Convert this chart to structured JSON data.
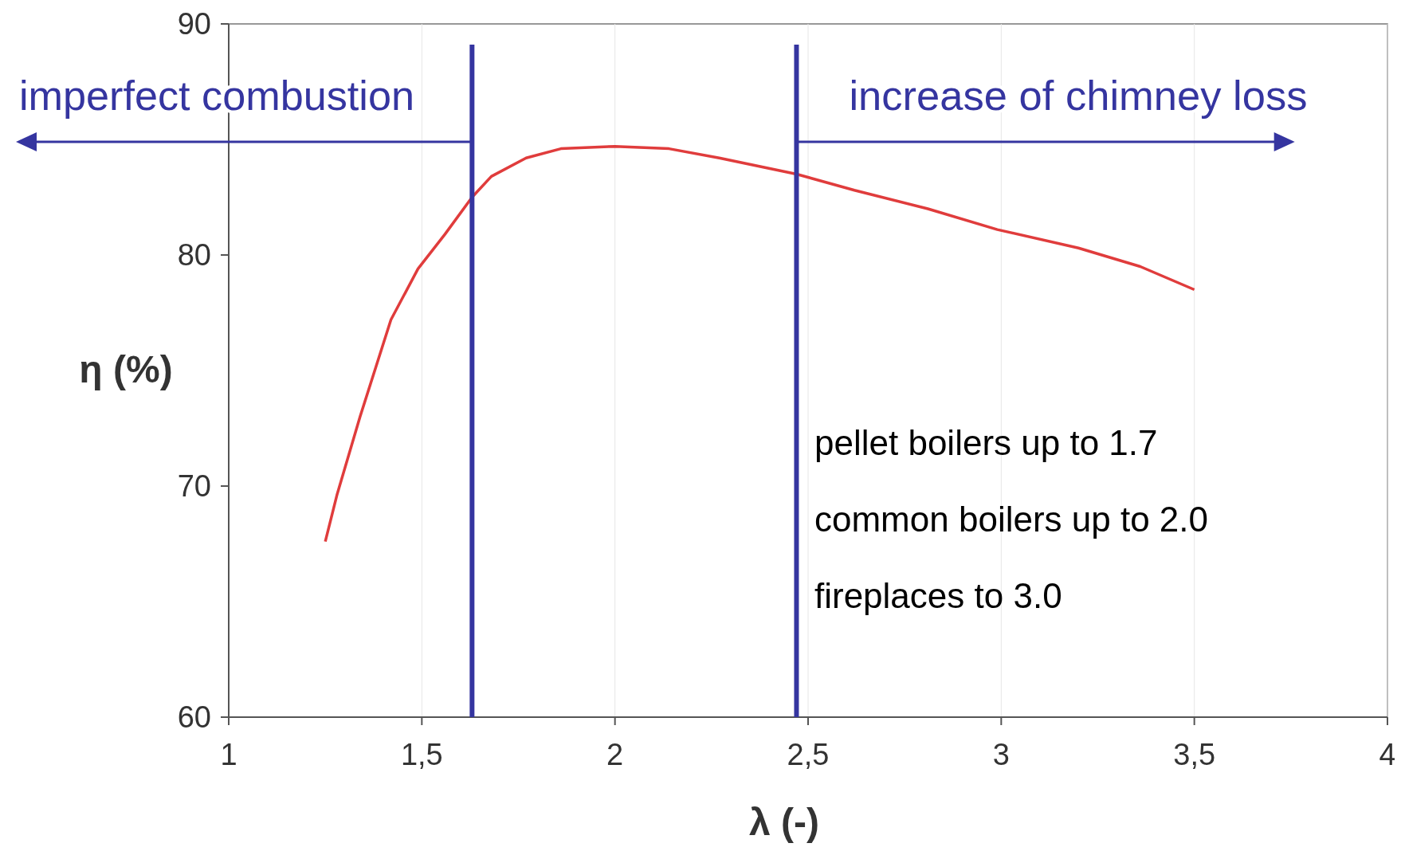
{
  "chart_data": {
    "type": "line",
    "xlabel": "λ (-)",
    "ylabel": "η (%)",
    "x": [
      1.25,
      1.28,
      1.34,
      1.42,
      1.49,
      1.56,
      1.63,
      1.68,
      1.77,
      1.86,
      2.0,
      2.14,
      2.27,
      2.47,
      2.62,
      2.81,
      2.99,
      3.2,
      3.36,
      3.5
    ],
    "series": [
      {
        "color": "#e03c3c",
        "values": [
          67.6,
          69.6,
          73.0,
          77.2,
          79.4,
          80.9,
          82.5,
          83.4,
          84.2,
          84.6,
          84.7,
          84.6,
          84.2,
          83.5,
          82.8,
          82.0,
          81.1,
          80.3,
          79.5,
          78.5
        ]
      }
    ],
    "xlim": [
      1,
      4
    ],
    "xticks": [
      1,
      {
        "value": 1.5,
        "label": "1,5"
      },
      2,
      {
        "value": 2.5,
        "label": "2,5"
      },
      3,
      {
        "value": 3.5,
        "label": "3,5"
      },
      4
    ],
    "ylim": [
      60,
      90
    ],
    "yticks": [
      60,
      70,
      80,
      90
    ],
    "grid": "x",
    "marker": "none",
    "line_style": "solid",
    "ref_lines": [
      {
        "axis": "x",
        "value": 1.63,
        "label": "imperfect combustion",
        "color": "#3535a0"
      },
      {
        "axis": "x",
        "value": 2.47,
        "label": "increase of chimney loss",
        "color": "#3535a0"
      }
    ],
    "annotations": [
      "pellet boilers up to 1.7",
      "common boilers up to 2.0",
      "fireplaces to 3.0"
    ]
  }
}
